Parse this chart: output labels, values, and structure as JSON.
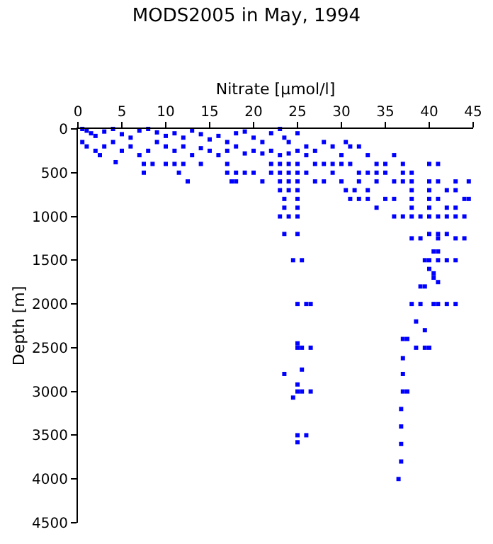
{
  "chart_data": {
    "type": "scatter",
    "title": "MODS2005 in May, 1994",
    "xlabel": "Nitrate [µmol/l]",
    "ylabel": "Depth [m]",
    "xlim": [
      0,
      45
    ],
    "xticks": [
      0,
      5,
      10,
      15,
      20,
      25,
      30,
      35,
      40,
      45
    ],
    "ylim": [
      4500,
      0
    ],
    "yticks": [
      0,
      500,
      1000,
      1500,
      2000,
      2500,
      3000,
      3500,
      4000,
      4500
    ],
    "marker": "square",
    "series": [
      {
        "color": "#0000ff",
        "x": [
          0.5,
          1,
          1.5,
          2,
          3,
          4,
          5,
          6,
          7,
          8,
          9,
          10,
          11,
          12,
          13,
          14,
          15,
          16,
          17,
          18,
          19,
          20,
          21,
          22,
          23,
          23.5,
          24,
          25,
          26,
          0.5,
          1,
          2,
          2.5,
          3,
          4,
          5,
          6,
          7,
          8,
          9,
          10,
          11,
          12,
          13,
          14,
          15,
          16,
          17,
          18,
          19,
          20,
          21,
          22,
          23,
          24,
          25,
          26,
          27,
          28,
          29,
          30,
          30.5,
          31,
          32,
          33,
          36,
          4.3,
          7.5,
          8.5,
          10,
          11,
          12,
          14,
          17,
          22,
          23,
          24,
          25,
          27,
          28,
          29,
          30,
          31,
          34,
          35,
          37,
          40,
          41,
          7.5,
          11.5,
          17,
          18,
          19,
          20,
          22,
          23,
          24,
          25,
          26,
          29,
          32,
          33,
          34,
          35,
          37,
          38,
          12.5,
          17.5,
          18,
          21,
          23,
          24,
          25,
          27,
          28,
          30,
          32,
          34,
          36,
          37,
          38,
          40,
          41,
          43,
          44.5,
          23,
          24,
          25,
          30.5,
          31.5,
          33,
          38,
          40,
          42,
          43,
          23.5,
          25,
          31,
          32,
          33,
          35,
          36,
          38,
          40,
          41,
          44,
          44.5,
          23.5,
          25,
          34,
          38,
          40,
          42,
          43,
          23,
          24,
          25,
          36,
          37,
          38,
          39,
          40,
          41,
          42,
          43,
          44,
          23.5,
          25,
          40,
          41,
          42,
          41,
          38,
          39,
          43,
          44,
          40.5,
          41,
          24.5,
          25.5,
          39.5,
          40,
          41,
          42,
          43,
          40,
          40.5,
          40.5,
          41,
          39,
          39.5,
          25,
          26,
          26.5,
          38,
          39,
          40.5,
          41,
          42,
          43,
          38.5,
          39.5,
          37,
          37.5,
          25,
          25,
          25.5,
          26.5,
          38.5,
          39.5,
          40,
          37,
          23.5,
          25.5,
          37,
          25,
          25,
          25.5,
          26.5,
          37,
          37.5,
          24.5,
          36.8,
          36.8,
          25,
          26,
          25,
          36.8,
          36.8,
          36.5
        ],
        "values": [
          0,
          20,
          50,
          80,
          30,
          0,
          60,
          100,
          20,
          0,
          40,
          80,
          50,
          100,
          20,
          60,
          120,
          80,
          150,
          50,
          30,
          100,
          150,
          50,
          0,
          100,
          150,
          50,
          200,
          150,
          200,
          250,
          300,
          200,
          150,
          250,
          200,
          300,
          250,
          150,
          200,
          250,
          200,
          300,
          220,
          250,
          300,
          250,
          200,
          280,
          250,
          280,
          250,
          300,
          280,
          250,
          300,
          250,
          150,
          200,
          300,
          150,
          200,
          200,
          300,
          300,
          380,
          400,
          400,
          400,
          400,
          400,
          400,
          400,
          400,
          400,
          400,
          400,
          400,
          400,
          400,
          400,
          400,
          400,
          400,
          400,
          400,
          400,
          500,
          500,
          500,
          500,
          500,
          500,
          500,
          500,
          500,
          500,
          500,
          500,
          500,
          500,
          500,
          500,
          500,
          500,
          600,
          600,
          600,
          600,
          600,
          600,
          600,
          600,
          600,
          600,
          600,
          600,
          600,
          600,
          600,
          600,
          600,
          600,
          600,
          700,
          700,
          700,
          700,
          700,
          700,
          700,
          700,
          700,
          700,
          800,
          800,
          800,
          800,
          800,
          800,
          800,
          800,
          800,
          800,
          800,
          800,
          900,
          900,
          900,
          900,
          900,
          900,
          900,
          1000,
          1000,
          1000,
          1000,
          1000,
          1000,
          1000,
          1000,
          1000,
          1000,
          1000,
          1000,
          1200,
          1200,
          1200,
          1200,
          1200,
          1250,
          1250,
          1250,
          1250,
          1250,
          1400,
          1400,
          1500,
          1500,
          1500,
          1500,
          1500,
          1500,
          1500,
          1600,
          1650,
          1700,
          1750,
          1800,
          1800,
          2000,
          2000,
          2000,
          2000,
          2000,
          2000,
          2000,
          2000,
          2000,
          2200,
          2300,
          2400,
          2400,
          2450,
          2500,
          2500,
          2500,
          2500,
          2500,
          2500,
          2620,
          2800,
          2750,
          2800,
          2920,
          3000,
          3000,
          3000,
          3000,
          3000,
          3070,
          3200,
          3400,
          3500,
          3500,
          3580,
          3600,
          3800,
          4000
        ]
      }
    ]
  }
}
